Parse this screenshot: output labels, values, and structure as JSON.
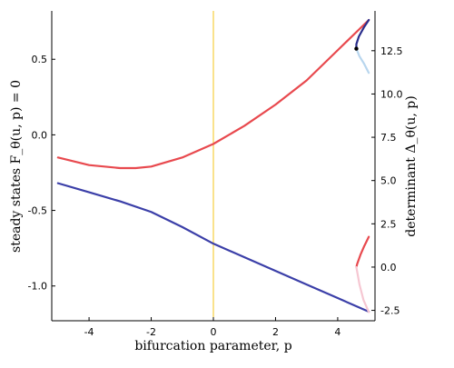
{
  "chart_data": {
    "type": "line",
    "xlabel": "bifurcation parameter, p",
    "ylabel_left": "steady states   F_θ(u, p) = 0",
    "ylabel_right": "determinant Δ_θ(u, p)",
    "xlim": [
      -5.2,
      5.2
    ],
    "ylim_left": [
      -1.23,
      0.82
    ],
    "ylim_right": [
      -3.1,
      14.8
    ],
    "x_ticks": [
      -4,
      -2,
      0,
      2,
      4
    ],
    "x_tick_labels": [
      "-4",
      "-2",
      "0",
      "2",
      "4"
    ],
    "y_left_ticks": [
      0.5,
      0.0,
      -0.5,
      -1.0
    ],
    "y_left_tick_labels": [
      "0.5",
      "0.0",
      "-0.5",
      "-1.0"
    ],
    "y_right_ticks": [
      12.5,
      10.0,
      7.5,
      5.0,
      2.5,
      0.0,
      -2.5
    ],
    "y_right_tick_labels": [
      "12.5",
      "10.0",
      "7.5",
      "5.0",
      "2.5",
      "0.0",
      "-2.5"
    ],
    "grid": false,
    "legend": "none",
    "vertical_line": {
      "x": 0,
      "color": "#f5c518"
    },
    "series": [
      {
        "axis": "left",
        "color": "#e8494e",
        "x": [
          -5.0,
          -4.0,
          -3.0,
          -2.5,
          -2.0,
          -1.0,
          0.0,
          1.0,
          2.0,
          3.0,
          4.0,
          5.0
        ],
        "y": [
          -0.15,
          -0.2,
          -0.22,
          -0.22,
          -0.21,
          -0.15,
          -0.06,
          0.06,
          0.2,
          0.36,
          0.56,
          0.76
        ]
      },
      {
        "axis": "left",
        "color": "#3b3fa8",
        "x": [
          -5.0,
          -4.0,
          -3.0,
          -2.0,
          -1.0,
          0.0,
          1.0,
          2.0,
          3.0,
          4.0,
          5.0
        ],
        "y": [
          -0.32,
          -0.38,
          -0.44,
          -0.51,
          -0.61,
          -0.72,
          -0.81,
          -0.9,
          -0.99,
          -1.08,
          -1.17
        ]
      },
      {
        "axis": "left",
        "color": "#2a2e8c",
        "x": [
          5.0,
          4.84,
          4.68,
          4.6,
          4.6
        ],
        "y": [
          0.76,
          0.71,
          0.65,
          0.6,
          0.57
        ]
      },
      {
        "axis": "left",
        "color": "#b8d6ee",
        "x": [
          4.6,
          4.7,
          4.85,
          5.0
        ],
        "y": [
          0.57,
          0.52,
          0.47,
          0.41
        ]
      },
      {
        "axis": "right",
        "color": "#e8494e",
        "x": [
          5.0,
          4.85,
          4.73,
          4.63,
          4.6
        ],
        "y": [
          1.75,
          1.2,
          0.7,
          0.2,
          0.0
        ]
      },
      {
        "axis": "right",
        "color": "#f6c7d2",
        "x": [
          4.6,
          4.7,
          4.83,
          5.0
        ],
        "y": [
          0.0,
          -1.0,
          -1.9,
          -2.6
        ]
      }
    ],
    "markers": [
      {
        "axis": "left",
        "x": 4.6,
        "y": 0.57,
        "color": "#000000"
      }
    ]
  }
}
